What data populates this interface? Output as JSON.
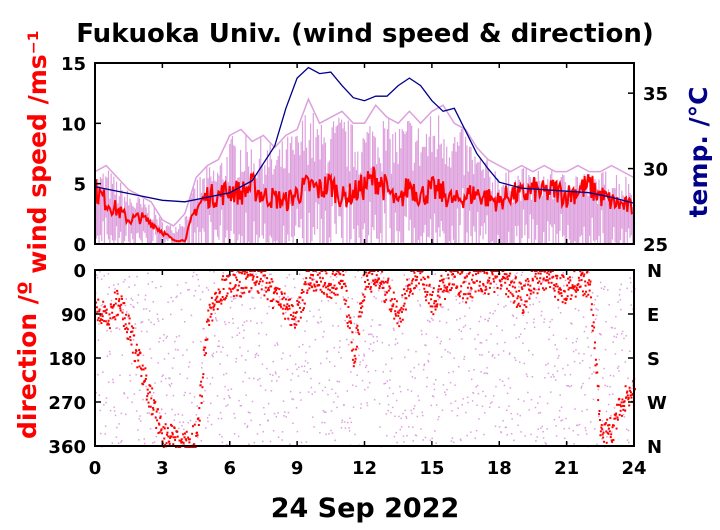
{
  "chart_data": [
    {
      "type": "line",
      "title": "Fukuoka Univ. (wind speed & direction)",
      "xlabel": "24 Sep 2022",
      "ylabel": "wind speed /ms⁻¹",
      "y2label": "temp. /°C",
      "xlim": [
        0,
        24
      ],
      "ylim": [
        0,
        15
      ],
      "y2lim": [
        25,
        37
      ],
      "x_ticks": [
        "0",
        "3",
        "6",
        "9",
        "12",
        "15",
        "18",
        "21",
        "24"
      ],
      "y_ticks": [
        "0",
        "5",
        "10",
        "15"
      ],
      "y2_ticks": [
        "25",
        "30",
        "35"
      ],
      "colors": {
        "gust": "#dda0dd",
        "mean": "#ff0000",
        "temp": "#00008b"
      },
      "series": [
        {
          "role": "gust",
          "x": [
            0,
            0.5,
            1,
            1.5,
            2,
            2.5,
            3,
            3.5,
            4,
            4.5,
            5,
            5.5,
            6,
            6.5,
            7,
            7.5,
            8,
            8.5,
            9,
            9.5,
            10,
            10.5,
            11,
            11.5,
            12,
            12.5,
            13,
            13.5,
            14,
            14.5,
            15,
            15.5,
            16,
            16.5,
            17,
            17.5,
            18,
            18.5,
            19,
            19.5,
            20,
            20.5,
            21,
            21.5,
            22,
            22.5,
            23,
            23.5,
            24
          ],
          "values": [
            6,
            6.5,
            5.5,
            4.5,
            4,
            3.5,
            2,
            1.5,
            2.5,
            5.5,
            6.5,
            7,
            9,
            9.5,
            8.5,
            9,
            8,
            9,
            9.5,
            12,
            10,
            10.5,
            11,
            10,
            10,
            11.5,
            10.5,
            10,
            11,
            10,
            11,
            11.5,
            10,
            9.5,
            8,
            7,
            6.5,
            6,
            6.5,
            6,
            6.5,
            6,
            6,
            6.5,
            6,
            6,
            6.5,
            6,
            5.5
          ]
        },
        {
          "role": "mean",
          "x": [
            0,
            0.5,
            1,
            1.5,
            2,
            2.5,
            3,
            3.5,
            4,
            4.5,
            5,
            5.5,
            6,
            6.5,
            7,
            7.5,
            8,
            8.5,
            9,
            9.5,
            10,
            10.5,
            11,
            11.5,
            12,
            12.5,
            13,
            13.5,
            14,
            14.5,
            15,
            15.5,
            16,
            16.5,
            17,
            17.5,
            18,
            18.5,
            19,
            19.5,
            20,
            20.5,
            21,
            21.5,
            22,
            22.5,
            23,
            23.5,
            24
          ],
          "values": [
            4.5,
            3.5,
            2.8,
            2,
            2.2,
            1.8,
            1,
            0.3,
            0.3,
            3,
            4,
            4,
            4.5,
            4.2,
            4.8,
            4,
            3.8,
            3.5,
            4.2,
            4.8,
            4.5,
            5,
            3.8,
            4.2,
            4.8,
            5.5,
            4.5,
            3.2,
            5,
            4,
            4.5,
            4.2,
            3.5,
            4,
            4.2,
            3.8,
            3.5,
            4.2,
            4,
            4.5,
            4.2,
            4.5,
            4,
            4.5,
            4.8,
            4,
            3.5,
            3.2,
            3
          ]
        },
        {
          "role": "temp",
          "x": [
            0,
            1,
            2,
            3,
            4,
            5,
            6,
            7,
            8,
            8.5,
            9,
            9.5,
            10,
            10.5,
            11,
            11.5,
            12,
            12.5,
            13,
            13.5,
            14,
            14.5,
            15,
            15.5,
            16,
            16.5,
            17,
            17.5,
            18,
            19,
            20,
            21,
            22,
            23,
            24
          ],
          "values": [
            28.8,
            28.5,
            28.2,
            27.9,
            27.8,
            28.1,
            28.4,
            29.2,
            31.5,
            34,
            36,
            36.7,
            36.3,
            36.4,
            35.5,
            34.7,
            34.5,
            34.8,
            34.8,
            35.5,
            36,
            35.5,
            34.5,
            33.8,
            34,
            32.5,
            31,
            30,
            29.1,
            28.7,
            28.6,
            28.5,
            28.4,
            28.1,
            27.7
          ]
        }
      ]
    },
    {
      "type": "scatter",
      "xlabel": "24 Sep 2022",
      "ylabel": "direction /º",
      "xlim": [
        0,
        24
      ],
      "ylim": [
        360,
        0
      ],
      "x_ticks": [
        "0",
        "3",
        "6",
        "9",
        "12",
        "15",
        "18",
        "21",
        "24"
      ],
      "y_ticks": [
        "0",
        "90",
        "180",
        "270",
        "360"
      ],
      "y2_ticks": [
        "N",
        "E",
        "S",
        "W",
        "N"
      ],
      "colors": {
        "instant": "#dda0dd",
        "mean": "#ff0000"
      },
      "series": [
        {
          "role": "mean",
          "x": [
            0,
            0.5,
            1,
            1.5,
            2,
            2.5,
            3,
            3.5,
            4,
            4.5,
            5,
            5.5,
            6,
            6.5,
            7,
            7.5,
            8,
            8.5,
            9,
            9.5,
            10,
            10.5,
            11,
            11.5,
            12,
            12.5,
            13,
            13.5,
            14,
            14.5,
            15,
            15.5,
            16,
            16.5,
            17,
            17.5,
            18,
            18.5,
            19,
            19.5,
            20,
            20.5,
            21,
            21.5,
            22,
            22.5,
            23,
            23.5,
            24
          ],
          "values": [
            80,
            100,
            60,
            120,
            200,
            270,
            330,
            350,
            360,
            340,
            90,
            40,
            20,
            30,
            10,
            20,
            60,
            80,
            90,
            10,
            20,
            30,
            10,
            180,
            10,
            20,
            40,
            100,
            20,
            10,
            60,
            30,
            10,
            40,
            10,
            20,
            10,
            30,
            60,
            20,
            10,
            30,
            40,
            20,
            30,
            340,
            320,
            270,
            240
          ]
        }
      ]
    }
  ]
}
